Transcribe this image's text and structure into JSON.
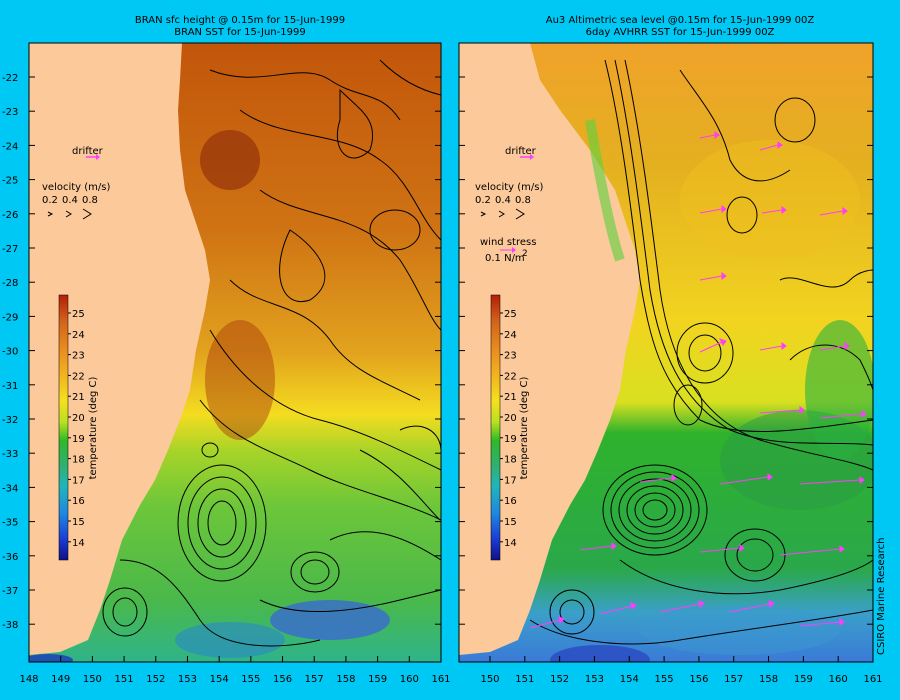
{
  "left_panel": {
    "title_line1": "BRAN sfc height @ 0.15m  for 15-Jun-1999",
    "title_line2": "BRAN SST for 15-Jun-1999",
    "drifter_label": "drifter",
    "velocity_label": "velocity (m/s)",
    "velocity_scale": [
      "0.2",
      "0.4",
      "0.8"
    ],
    "colorbar_label": "temperature (deg C)"
  },
  "right_panel": {
    "title_line1": "Au3 Altimetric sea level  @0.15m  for 15-Jun-1999 00Z",
    "title_line2": "6day AVHRR SST for 15-Jun-1999 00Z",
    "drifter_label": "drifter",
    "velocity_label": "velocity (m/s)",
    "velocity_scale": [
      "0.2",
      "0.4",
      "0.8"
    ],
    "wind_label": "wind stress",
    "wind_value": "0.1 N/m",
    "wind_exp": "2",
    "colorbar_label": "temperature (deg C)",
    "credit": "CSIRO Marine Research"
  },
  "colorbar_ticks": [
    "25",
    "24",
    "23",
    "22",
    "21",
    "20",
    "19",
    "18",
    "17",
    "16",
    "15",
    "14"
  ],
  "y_ticks": [
    "-22",
    "-23",
    "-24",
    "-25",
    "-26",
    "-27",
    "-28",
    "-29",
    "-30",
    "-31",
    "-32",
    "-33",
    "-34",
    "-35",
    "-36",
    "-37",
    "-38"
  ],
  "x_ticks_left": [
    "148",
    "149",
    "150",
    "151",
    "152",
    "153",
    "154",
    "155",
    "156",
    "157",
    "158",
    "159",
    "160",
    "161"
  ],
  "x_ticks_right": [
    "150",
    "151",
    "152",
    "153",
    "154",
    "155",
    "156",
    "157",
    "158",
    "159",
    "160",
    "161"
  ],
  "colors": {
    "background": "#00c8f4",
    "land": "#fbc99a",
    "drifter_arrow": "#ff3cff",
    "contour": "#000000"
  }
}
